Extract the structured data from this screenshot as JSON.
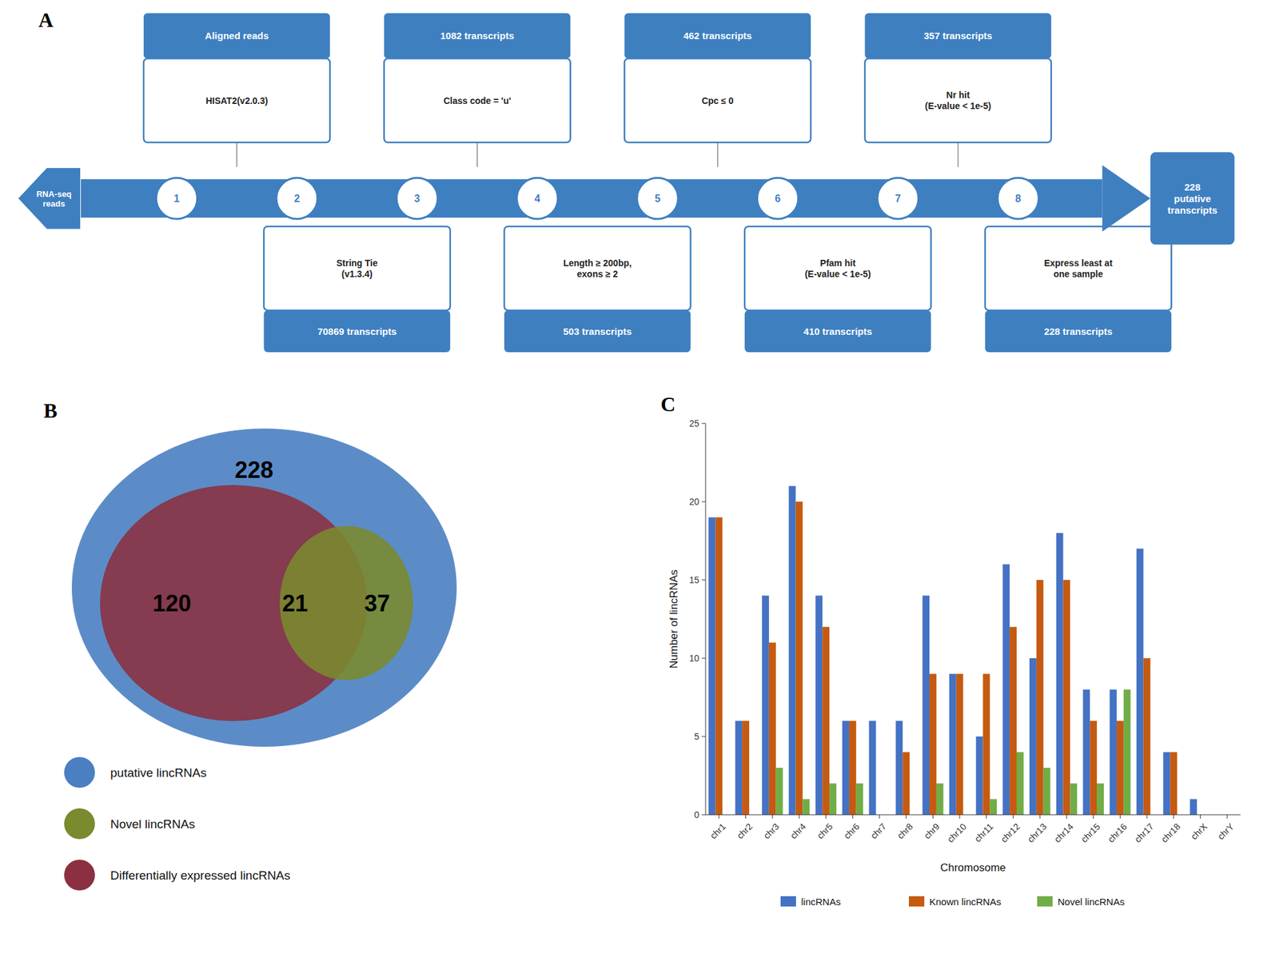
{
  "chart_data": [
    {
      "type": "flowchart",
      "title": "A",
      "color": "#3e7fc0",
      "input": "RNA-seq\nreads",
      "output": "228\nputative\ntranscripts",
      "nodes": [
        1,
        2,
        3,
        4,
        5,
        6,
        7,
        8
      ],
      "steps": [
        {
          "result": "Aligned reads",
          "method": "HISAT2(v2.0.3)"
        },
        {
          "result": "70869 transcripts",
          "method": "String Tie\n(v1.3.4)"
        },
        {
          "result": "1082 transcripts",
          "method": "Class code = 'u'"
        },
        {
          "result": "503 transcripts",
          "method": "Length ≥ 200bp,\nexons ≥ 2"
        },
        {
          "result": "462 transcripts",
          "method": "Cpc ≤ 0"
        },
        {
          "result": "410 transcripts",
          "method": "Pfam hit\n(E-value < 1e-5)"
        },
        {
          "result": "357 transcripts",
          "method": "Nr hit\n(E-value < 1e-5)"
        },
        {
          "result": "228 transcripts",
          "method": "Express least at\none sample"
        }
      ]
    },
    {
      "type": "venn",
      "title": "B",
      "series": [
        {
          "name": "putative lincRNAs",
          "color": "#4a7fc1"
        },
        {
          "name": "Novel lincRNAs",
          "color": "#7a8a2e"
        },
        {
          "name": "Differentially expressed lincRNAs",
          "color": "#8b3040"
        }
      ],
      "values": [
        228,
        120,
        21,
        37
      ],
      "legend": "bottom"
    },
    {
      "type": "bar",
      "title": "C",
      "categories": [
        "chr1",
        "chr2",
        "chr3",
        "chr4",
        "chr5",
        "chr6",
        "chr7",
        "chr8",
        "chr9",
        "chr10",
        "chr11",
        "chr12",
        "chr13",
        "chr14",
        "chr15",
        "chr16",
        "chr17",
        "chr18",
        "chrX",
        "chrY"
      ],
      "series": [
        {
          "name": "lincRNAs",
          "color": "#4472c4",
          "values": [
            19,
            6,
            14,
            21,
            14,
            6,
            6,
            6,
            14,
            9,
            5,
            16,
            10,
            18,
            8,
            8,
            17,
            4,
            1,
            0
          ]
        },
        {
          "name": "Known lincRNAs",
          "color": "#c55a11",
          "values": [
            19,
            6,
            11,
            20,
            12,
            6,
            0,
            4,
            9,
            9,
            9,
            12,
            15,
            15,
            6,
            6,
            10,
            4,
            0,
            0
          ]
        },
        {
          "name": "Novel lincRNAs",
          "color": "#70ad47",
          "values": [
            0,
            0,
            3,
            1,
            2,
            2,
            0,
            0,
            2,
            0,
            1,
            4,
            3,
            2,
            2,
            8,
            0,
            0,
            0,
            0
          ]
        }
      ],
      "xlabel": "Chromosome",
      "ylabel": "Number of lincRNAs",
      "ylim": [
        0,
        25
      ],
      "yticks": [
        0,
        5,
        10,
        15,
        20,
        25
      ],
      "grid": false,
      "legend": "bottom"
    }
  ]
}
